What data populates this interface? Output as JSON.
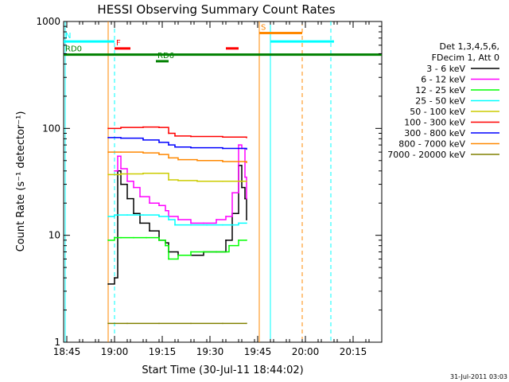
{
  "chart_data": {
    "type": "line",
    "title": "HESSI Observing Summary Count Rates",
    "xlabel": "Start Time (30-Jul-11 18:44:02)",
    "ylabel": "Count Rate (s⁻¹ detector⁻¹)",
    "y_scale": "log",
    "ylim": [
      1,
      1000
    ],
    "xlim_minutes": [
      0,
      100
    ],
    "x_ticks": [
      {
        "label": "18:45",
        "t": 1
      },
      {
        "label": "19:00",
        "t": 16
      },
      {
        "label": "19:15",
        "t": 31
      },
      {
        "label": "19:30",
        "t": 46
      },
      {
        "label": "19:45",
        "t": 61
      },
      {
        "label": "20:00",
        "t": 76
      },
      {
        "label": "20:15",
        "t": 91
      }
    ],
    "y_ticks": [
      {
        "label": "1",
        "v": 1
      },
      {
        "label": "10",
        "v": 10
      },
      {
        "label": "100",
        "v": 100
      },
      {
        "label": "1000",
        "v": 1000
      }
    ],
    "grid": false,
    "legend_position": "right",
    "legend_header": [
      "Det 1,3,4,5,6,",
      "FDecim 1, Att 0"
    ],
    "timestamp": "31-Jul-2011 03:03",
    "series": [
      {
        "name": "3 - 6 keV",
        "color": "#000000",
        "x": [
          14,
          16,
          17,
          18,
          20,
          22,
          24,
          27,
          30,
          32,
          33,
          36,
          40,
          44,
          48,
          51,
          53,
          55,
          56,
          57,
          57.5
        ],
        "values": [
          3.5,
          4,
          40,
          30,
          22,
          16,
          13,
          11,
          9,
          8.5,
          7,
          6.5,
          6.5,
          7,
          7,
          9,
          16,
          45,
          28,
          22,
          14
        ]
      },
      {
        "name": "6 - 12 keV",
        "color": "#ff00ff",
        "x": [
          16,
          17,
          18,
          20,
          22,
          24,
          27,
          30,
          32,
          33,
          36,
          40,
          44,
          48,
          51,
          53,
          55,
          56,
          57,
          57.5
        ],
        "values": [
          40,
          55,
          42,
          32,
          28,
          23,
          20,
          19,
          17,
          15,
          14,
          13,
          13,
          14,
          15,
          25,
          70,
          65,
          35,
          22
        ]
      },
      {
        "name": "12 - 25 keV",
        "color": "#00ff00",
        "x": [
          14,
          16,
          18,
          22,
          26,
          30,
          32,
          33,
          36,
          40,
          44,
          48,
          52,
          55,
          57.5
        ],
        "values": [
          9,
          9.5,
          9.5,
          9.5,
          9.5,
          9,
          8,
          6,
          6.5,
          7,
          7,
          7,
          8,
          9,
          9
        ]
      },
      {
        "name": "25 - 50 keV",
        "color": "#00ffff",
        "x": [
          14,
          16,
          20,
          25,
          30,
          33,
          35,
          40,
          45,
          50,
          55,
          57.5
        ],
        "values": [
          15,
          15.5,
          15.5,
          15.5,
          15,
          14,
          12.5,
          12.5,
          12.5,
          12.5,
          13,
          13
        ]
      },
      {
        "name": "50 - 100 keV",
        "color": "#cccc00",
        "x": [
          14,
          18,
          25,
          30,
          33,
          36,
          42,
          50,
          57.5
        ],
        "values": [
          37,
          37.5,
          38,
          38,
          33,
          32.5,
          32,
          32,
          32
        ]
      },
      {
        "name": "100 - 300 keV",
        "color": "#ff0000",
        "x": [
          14,
          18,
          25,
          30,
          33,
          35,
          40,
          50,
          57.5
        ],
        "values": [
          100,
          102,
          103,
          102,
          90,
          85,
          84,
          83,
          82
        ]
      },
      {
        "name": "300 - 800 keV",
        "color": "#0000ff",
        "x": [
          14,
          18,
          25,
          30,
          33,
          35,
          40,
          50,
          57.5
        ],
        "values": [
          82,
          81,
          78,
          74,
          70,
          67,
          66,
          65,
          64
        ]
      },
      {
        "name": "800 - 7000 keV",
        "color": "#ff8800",
        "x": [
          14,
          18,
          25,
          30,
          33,
          36,
          42,
          50,
          57.5
        ],
        "values": [
          60,
          60,
          59,
          57,
          53,
          51,
          50,
          49,
          48
        ]
      },
      {
        "name": "7000 - 20000 keV",
        "color": "#808000",
        "x": [
          14,
          20,
          30,
          40,
          50,
          57.5
        ],
        "values": [
          1.5,
          1.5,
          1.5,
          1.5,
          1.5,
          1.5
        ]
      }
    ],
    "flags": [
      {
        "label": "N",
        "color": "#00ffff",
        "v": 650,
        "segments": [
          [
            0,
            16
          ],
          [
            65,
            85
          ]
        ]
      },
      {
        "label": "F",
        "color": "#ff0000",
        "v": 560,
        "segments": [
          [
            16,
            21
          ]
        ]
      },
      {
        "label": "S",
        "color": "#ff8800",
        "v": 780,
        "segments": [
          [
            61.5,
            75
          ]
        ]
      },
      {
        "label": "",
        "color": "#ff0000",
        "v": 560,
        "segments": [
          [
            51,
            55
          ]
        ]
      },
      {
        "label": "RD0",
        "color": "#008000",
        "v": 490,
        "segments": [
          [
            0,
            100
          ]
        ]
      },
      {
        "label": "RD6",
        "color": "#008000",
        "v": 425,
        "segments": [
          [
            29,
            33
          ]
        ]
      }
    ],
    "vlines": [
      {
        "t": 0.5,
        "color": "#00ffff",
        "style": "solid"
      },
      {
        "t": 16,
        "color": "#00ffff",
        "style": "dashed"
      },
      {
        "t": 61.5,
        "color": "#ff8800",
        "style": "solid"
      },
      {
        "t": 65,
        "color": "#00ffff",
        "style": "solid"
      },
      {
        "t": 75,
        "color": "#ff8800",
        "style": "dashed"
      },
      {
        "t": 84,
        "color": "#00ffff",
        "style": "dashed"
      },
      {
        "t": 14,
        "color": "#ff8800",
        "style": "solid"
      }
    ]
  }
}
